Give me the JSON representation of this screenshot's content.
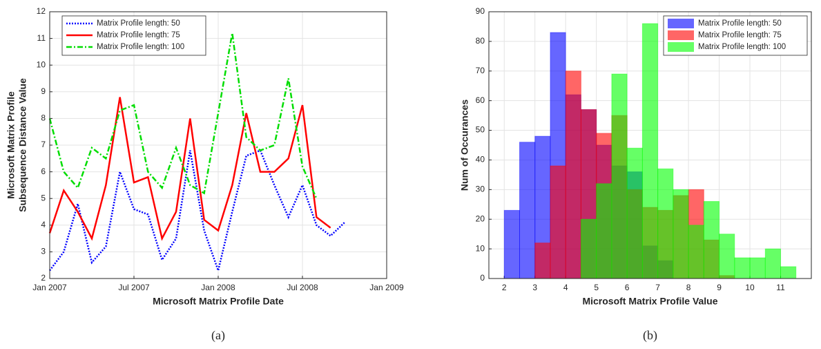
{
  "chart_data": [
    {
      "type": "line",
      "caption": "(a)",
      "xlabel": "Microsoft Matrix Profile Date",
      "ylabel": [
        "Microsoft Matrix Profile",
        "Subsequence Distance Value"
      ],
      "x": [
        "2007-01",
        "2007-02",
        "2007-03",
        "2007-04",
        "2007-05",
        "2007-06",
        "2007-07",
        "2007-08",
        "2007-09",
        "2007-10",
        "2007-11",
        "2007-12",
        "2008-01",
        "2008-02",
        "2008-03",
        "2008-04",
        "2008-05",
        "2008-06",
        "2008-07",
        "2008-08",
        "2008-09",
        "2008-10"
      ],
      "series": [
        {
          "name": "Matrix Profile length: 50",
          "color": "#0000ff",
          "linestyle": "dotted",
          "values": [
            2.3,
            3.0,
            4.8,
            2.6,
            3.2,
            6.0,
            4.6,
            4.4,
            2.7,
            3.5,
            6.8,
            3.8,
            2.3,
            4.5,
            6.6,
            6.8,
            5.5,
            4.3,
            5.5,
            4.0,
            3.6,
            4.1
          ]
        },
        {
          "name": "Matrix Profile length: 75",
          "color": "#ff0000",
          "linestyle": "solid",
          "values": [
            3.7,
            5.3,
            4.5,
            3.5,
            5.5,
            8.8,
            5.6,
            5.8,
            3.5,
            4.5,
            8.0,
            4.2,
            3.8,
            5.5,
            8.2,
            6.0,
            6.0,
            6.5,
            8.5,
            4.3,
            3.9,
            null
          ]
        },
        {
          "name": "Matrix Profile length: 100",
          "color": "#00dd00",
          "linestyle": "dashdot",
          "values": [
            8.0,
            6.0,
            5.4,
            6.9,
            6.5,
            8.3,
            8.5,
            6.0,
            5.4,
            6.9,
            5.5,
            5.2,
            8.2,
            11.2,
            7.3,
            6.8,
            7.0,
            9.5,
            6.2,
            5.0,
            null,
            null
          ]
        }
      ],
      "xlim": [
        "2007-01",
        "2009-01"
      ],
      "xticks": [
        {
          "value": "2007-01",
          "label": "Jan 2007"
        },
        {
          "value": "2007-07",
          "label": "Jul 2007"
        },
        {
          "value": "2008-01",
          "label": "Jan 2008"
        },
        {
          "value": "2008-07",
          "label": "Jul 2008"
        },
        {
          "value": "2009-01",
          "label": "Jan 2009"
        }
      ],
      "ylim": [
        2,
        12
      ],
      "yticks": [
        2,
        3,
        4,
        5,
        6,
        7,
        8,
        9,
        10,
        11,
        12
      ],
      "grid": true,
      "legend": "upper left"
    },
    {
      "type": "histogram",
      "caption": "(b)",
      "xlabel": "Microsoft Matrix Profile Value",
      "ylabel": [
        "Num of Occurances"
      ],
      "series": [
        {
          "name": "Matrix Profile length: 50",
          "color": "#0000ff",
          "opacity": 0.6,
          "bins": [
            2,
            2.5,
            3,
            3.5,
            4,
            4.5,
            5,
            5.5,
            6,
            6.5,
            7,
            7.5
          ],
          "values": [
            23,
            46,
            48,
            83,
            62,
            57,
            45,
            38,
            36,
            11,
            6
          ]
        },
        {
          "name": "Matrix Profile length: 75",
          "color": "#ff0000",
          "opacity": 0.6,
          "bins": [
            3,
            3.5,
            4,
            4.5,
            5,
            5.5,
            6,
            6.5,
            7,
            7.5,
            8,
            8.5,
            9,
            9.5
          ],
          "values": [
            12,
            38,
            70,
            57,
            49,
            55,
            30,
            24,
            23,
            28,
            30,
            13,
            1
          ]
        },
        {
          "name": "Matrix Profile length: 100",
          "color": "#00ff00",
          "opacity": 0.6,
          "bins": [
            4.5,
            5,
            5.5,
            6,
            6.5,
            7,
            7.5,
            8,
            8.5,
            9,
            9.5,
            10,
            10.5,
            11,
            11.5
          ],
          "values": [
            20,
            32,
            69,
            44,
            86,
            37,
            30,
            18,
            26,
            15,
            7,
            7,
            10,
            4
          ]
        }
      ],
      "xlim": [
        1.5,
        12
      ],
      "xticks": [
        2,
        3,
        4,
        5,
        6,
        7,
        8,
        9,
        10,
        11
      ],
      "ylim": [
        0,
        90
      ],
      "yticks": [
        0,
        10,
        20,
        30,
        40,
        50,
        60,
        70,
        80,
        90
      ],
      "grid": true,
      "legend": "upper right"
    }
  ]
}
